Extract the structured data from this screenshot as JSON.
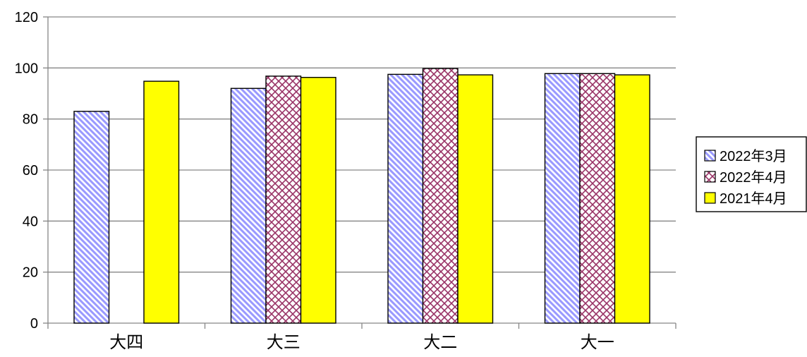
{
  "chart_data": {
    "type": "bar",
    "title": "",
    "xlabel": "",
    "ylabel": "",
    "categories": [
      "大四",
      "大三",
      "大二",
      "大一"
    ],
    "ylim": [
      0,
      120
    ],
    "yticks": [
      0,
      20,
      40,
      60,
      80,
      100,
      120
    ],
    "grid": true,
    "legend_position": "right",
    "series": [
      {
        "name": "2022年3月",
        "values": [
          83,
          92,
          97.5,
          97.8
        ],
        "pattern": "diagonal-stripes",
        "color": "#9999ff",
        "stroke": "#000000"
      },
      {
        "name": "2022年4月",
        "values": [
          null,
          96.8,
          99.8,
          97.8
        ],
        "pattern": "crosshatch",
        "color": "#993366",
        "stroke": "#000000"
      },
      {
        "name": "2021年4月",
        "values": [
          94.8,
          96.3,
          97.3,
          97.3
        ],
        "pattern": "solid",
        "color": "#ffff00",
        "stroke": "#000000"
      }
    ]
  }
}
